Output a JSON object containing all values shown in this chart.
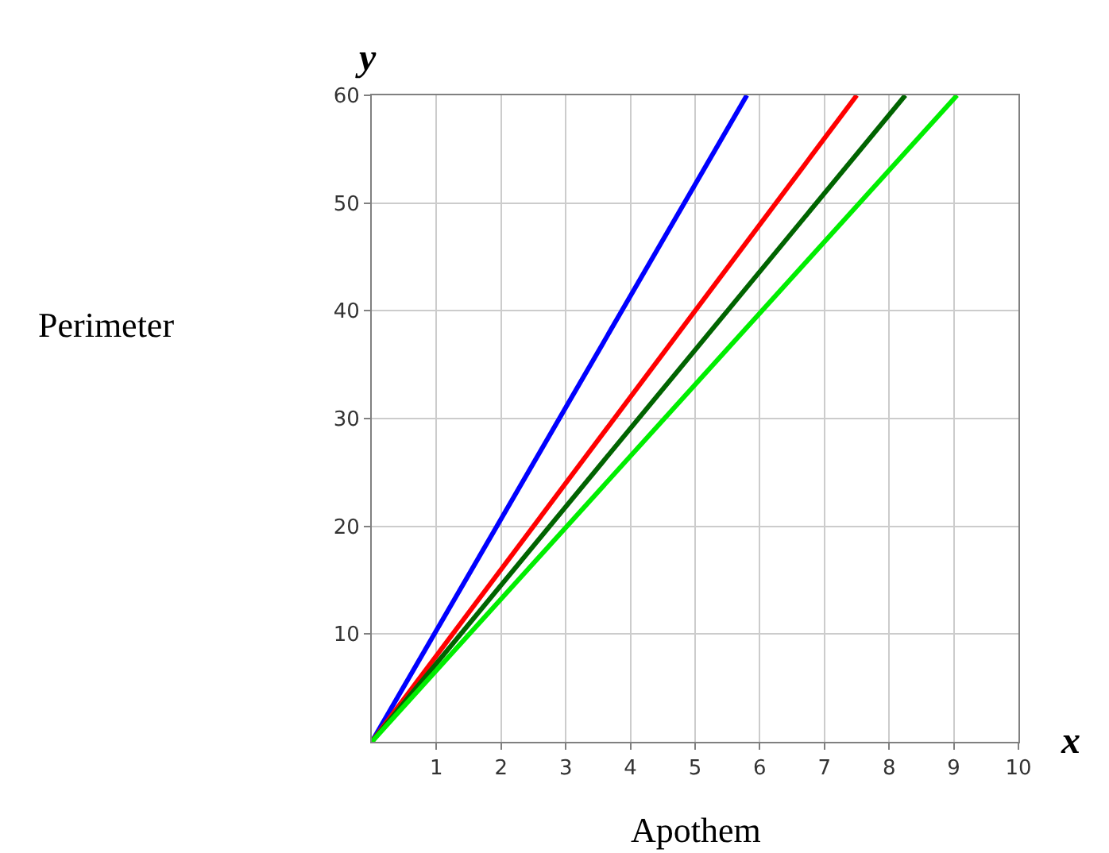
{
  "chart_data": {
    "type": "line",
    "xlabel": "Apothem",
    "ylabel": "Perimeter",
    "annotations": [
      "x",
      "y"
    ],
    "series": [
      {
        "color": "#0000ff",
        "x": [
          0,
          5.8
        ],
        "values": [
          0,
          60
        ]
      },
      {
        "color": "#ff0000",
        "x": [
          0,
          7.5
        ],
        "values": [
          0,
          60
        ]
      },
      {
        "color": "#006400",
        "x": [
          0,
          8.25
        ],
        "values": [
          0,
          60
        ]
      },
      {
        "color": "#00ee00",
        "x": [
          0,
          9.05
        ],
        "values": [
          0,
          60
        ]
      }
    ],
    "xlim": [
      0,
      10
    ],
    "ylim": [
      0,
      60
    ],
    "xticks": [
      1,
      2,
      3,
      4,
      5,
      6,
      7,
      8,
      9,
      10
    ],
    "yticks": [
      10,
      20,
      30,
      40,
      50,
      60
    ],
    "grid": true,
    "marker": "none",
    "line_style": "solid"
  }
}
